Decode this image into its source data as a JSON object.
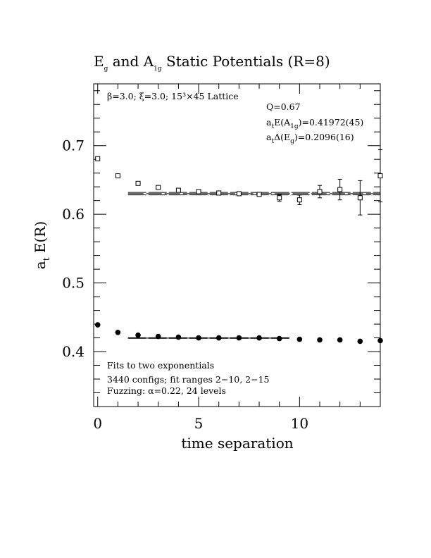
{
  "chart_data": {
    "type": "scatter",
    "title": "E_g and A_1g Static Potentials (R=8)",
    "title_parts": {
      "e": "E",
      "e_sub": "g",
      "mid": " and A",
      "a_sub": "1g",
      "rest": " Static Potentials (R=8)"
    },
    "xlabel": "time separation",
    "ylabel": "a_t E(R)",
    "ylabel_parts": {
      "a": "a",
      "a_sub": "t",
      "rest": " E(R)"
    },
    "xlim": [
      -0.2,
      14.0
    ],
    "ylim": [
      0.32,
      0.79
    ],
    "xticks": [
      0,
      5,
      10
    ],
    "xtick_labels": [
      "0",
      "5",
      "10"
    ],
    "yticks": [
      0.4,
      0.5,
      0.6,
      0.7
    ],
    "ytick_labels": [
      "0.4",
      "0.5",
      "0.6",
      "0.7"
    ],
    "grid": false,
    "annotations": {
      "lattice": "β=3.0; ξ=3.0; 15³×45 Lattice",
      "q": "Q=0.67",
      "e_a1g": {
        "a": "a",
        "t": "t",
        "rest": "E(A",
        "sub": "1g",
        "val": ")=0.41972(45)"
      },
      "delta_eg": {
        "a": "a",
        "t": "t",
        "rest": "Δ(E",
        "sub": "g",
        "val": ")=0.2096(16)"
      },
      "fits": "Fits to two exponentials",
      "configs": "3440 configs; fit ranges 2−10, 2−15",
      "fuzzing": "Fuzzing: α=0.22, 24 levels"
    },
    "series": [
      {
        "name": "E_g",
        "marker": "open-square",
        "x": [
          0,
          1,
          2,
          3,
          4,
          5,
          6,
          7,
          8,
          9,
          10,
          11,
          12,
          13,
          14
        ],
        "y": [
          0.681,
          0.656,
          0.645,
          0.639,
          0.635,
          0.633,
          0.631,
          0.63,
          0.629,
          0.624,
          0.621,
          0.633,
          0.636,
          0.624,
          0.656
        ],
        "err": [
          0.001,
          0.001,
          0.001,
          0.001,
          0.001,
          0.001,
          0.002,
          0.002,
          0.003,
          0.005,
          0.007,
          0.009,
          0.015,
          0.025,
          0.038
        ]
      },
      {
        "name": "A_1g",
        "marker": "filled-circle",
        "x": [
          0,
          1,
          2,
          3,
          4,
          5,
          6,
          7,
          8,
          9,
          10,
          11,
          12,
          13,
          14
        ],
        "y": [
          0.439,
          0.428,
          0.424,
          0.422,
          0.421,
          0.42,
          0.42,
          0.42,
          0.42,
          0.419,
          0.418,
          0.417,
          0.417,
          0.415,
          0.416
        ],
        "err": [
          0,
          0,
          0,
          0,
          0,
          0,
          0,
          0,
          0,
          0,
          0,
          0,
          0,
          0,
          0
        ]
      }
    ],
    "fit_lines": [
      {
        "series": "E_g",
        "x_range": [
          1.5,
          15
        ],
        "center": 0.63,
        "band": 0.0018
      },
      {
        "series": "A_1g",
        "x_range": [
          1.5,
          9.5
        ],
        "center": 0.41972,
        "band": 0.00045
      }
    ]
  }
}
